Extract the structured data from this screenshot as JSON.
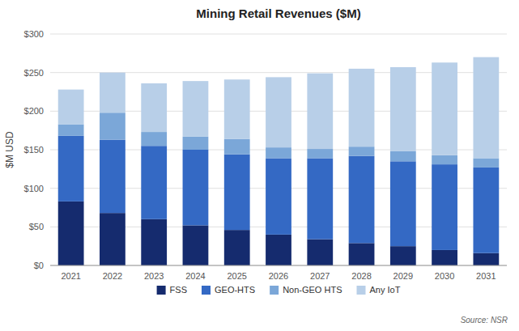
{
  "chart_data": {
    "type": "bar",
    "stacked": true,
    "title": "Mining Retail Revenues ($M)",
    "y_label": "$M USD",
    "categories": [
      "2021",
      "2022",
      "2023",
      "2024",
      "2025",
      "2026",
      "2027",
      "2028",
      "2029",
      "2030",
      "2031"
    ],
    "series": [
      {
        "name": "FSS",
        "color": "#152b6e",
        "values": [
          83,
          68,
          60,
          52,
          46,
          40,
          34,
          29,
          25,
          20,
          16
        ]
      },
      {
        "name": "GEO-HTS",
        "color": "#3469c4",
        "values": [
          85,
          95,
          95,
          98,
          98,
          99,
          105,
          113,
          110,
          111,
          111
        ]
      },
      {
        "name": "Non-GEO HTS",
        "color": "#7ba7d8",
        "values": [
          15,
          35,
          18,
          17,
          20,
          14,
          12,
          12,
          13,
          12,
          12
        ]
      },
      {
        "name": "Any IoT",
        "color": "#b8cfe8",
        "values": [
          45,
          52,
          63,
          72,
          77,
          91,
          98,
          101,
          109,
          120,
          131
        ]
      }
    ],
    "ylim": [
      0,
      300
    ],
    "yticks": [
      {
        "value": 0,
        "label": "$0"
      },
      {
        "value": 50,
        "label": "$50"
      },
      {
        "value": 100,
        "label": "$100"
      },
      {
        "value": 150,
        "label": "$150"
      },
      {
        "value": 200,
        "label": "$200"
      },
      {
        "value": 250,
        "label": "$250"
      },
      {
        "value": 300,
        "label": "$300"
      }
    ],
    "grid": true,
    "legend": "bottom",
    "annotations": [
      "Source: NSR"
    ]
  }
}
